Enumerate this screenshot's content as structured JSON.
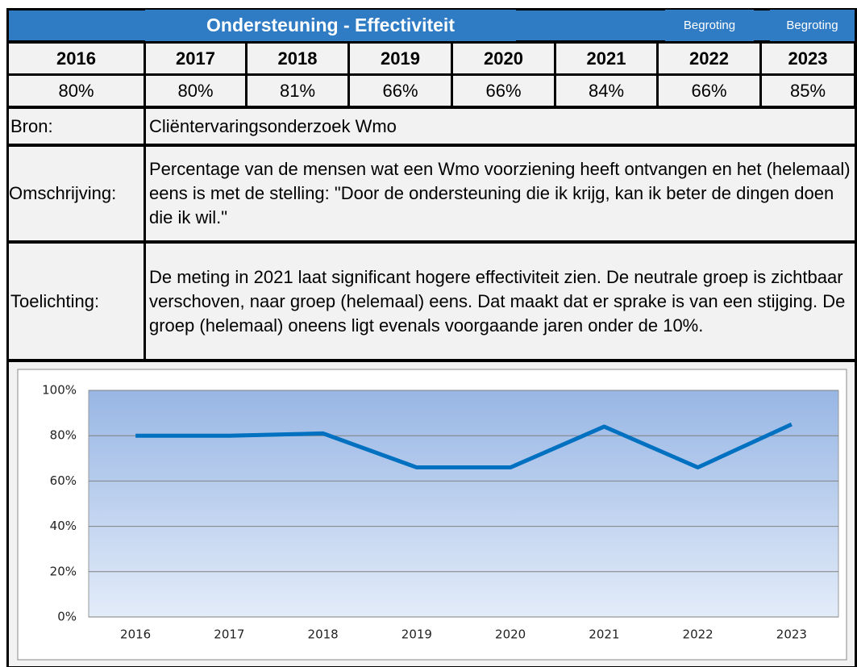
{
  "header": {
    "title": "Ondersteuning - Effectiviteit",
    "budget_labels": [
      "Begroting",
      "Begroting"
    ]
  },
  "table": {
    "years": [
      "2016",
      "2017",
      "2018",
      "2019",
      "2020",
      "2021",
      "2022",
      "2023"
    ],
    "values": [
      "80%",
      "80%",
      "81%",
      "66%",
      "66%",
      "84%",
      "66%",
      "85%"
    ]
  },
  "details": {
    "source_label": "Bron:",
    "source": "Cliëntervaringsonderzoek Wmo",
    "description_label": "Omschrijving:",
    "description": "Percentage van de mensen wat een Wmo voorziening heeft ontvangen en het (helemaal) eens is met de stelling: \"Door de ondersteuning die ik krijg, kan ik beter de dingen doen die ik wil.\"",
    "explanation_label": "Toelichting:",
    "explanation": "De meting in 2021 laat significant hogere effectiviteit zien. De neutrale groep is zichtbaar verschoven, naar groep (helemaal) eens. Dat maakt dat er sprake is van een stijging. De groep (helemaal) oneens ligt evenals voorgaande jaren onder de 10%."
  },
  "chart_data": {
    "type": "line",
    "categories": [
      "2016",
      "2017",
      "2018",
      "2019",
      "2020",
      "2021",
      "2022",
      "2023"
    ],
    "values": [
      80,
      80,
      81,
      66,
      66,
      84,
      66,
      85
    ],
    "color": "#0070c0",
    "ylim": [
      0,
      100
    ],
    "yticks": [
      {
        "value": 0,
        "label": "0%"
      },
      {
        "value": 20,
        "label": "20%"
      },
      {
        "value": 40,
        "label": "40%"
      },
      {
        "value": 60,
        "label": "60%"
      },
      {
        "value": 80,
        "label": "80%"
      },
      {
        "value": 100,
        "label": "100%"
      }
    ],
    "grid": true
  }
}
